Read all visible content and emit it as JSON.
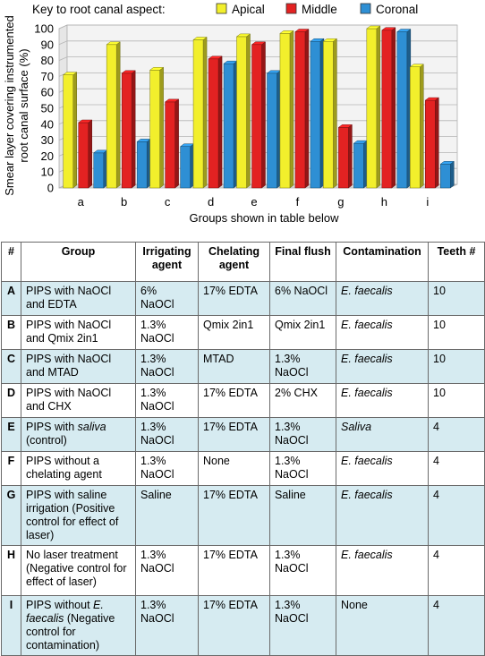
{
  "chart_data": {
    "type": "bar",
    "legend_title": "Key to root canal aspect:",
    "legend_position": "top",
    "categories": [
      "a",
      "b",
      "c",
      "d",
      "e",
      "f",
      "g",
      "h",
      "i"
    ],
    "series": [
      {
        "name": "Apical",
        "color": "#f2ef2c",
        "values": [
          71,
          90,
          74,
          93,
          95,
          97,
          92,
          100,
          76
        ]
      },
      {
        "name": "Middle",
        "color": "#e32222",
        "values": [
          41,
          72,
          54,
          81,
          90,
          98,
          38,
          99,
          55
        ]
      },
      {
        "name": "Coronal",
        "color": "#2e8fd4",
        "values": [
          22,
          29,
          26,
          78,
          72,
          92,
          28,
          98,
          15
        ]
      }
    ],
    "ylabel": "Smear layer covering instrumented root canal surface (%)",
    "ylabel_lines": [
      "Smear layer covering instrumented",
      "root canal surface (%)"
    ],
    "xlabel": "Groups shown in table below",
    "ylim": [
      0,
      100
    ],
    "yticks": [
      0,
      10,
      20,
      30,
      40,
      50,
      60,
      70,
      80,
      90,
      100
    ],
    "grid": true
  },
  "table": {
    "headers": [
      "#",
      "Group",
      "Irrigating agent",
      "Chelating agent",
      "Final flush",
      "Contamination",
      "Teeth #"
    ],
    "rows": [
      {
        "id": "A",
        "group": "PIPS with NaOCl and EDTA",
        "group_italic": "",
        "group_post": "",
        "irrigant": "6% NaOCl",
        "chelator": "17% EDTA",
        "flush": "6% NaOCl",
        "contamination": "E. faecalis",
        "teeth": "10"
      },
      {
        "id": "B",
        "group": "PIPS with NaOCl and Qmix 2in1",
        "group_italic": "",
        "group_post": "",
        "irrigant": "1.3% NaOCl",
        "chelator": "Qmix 2in1",
        "flush": "Qmix 2in1",
        "contamination": "E. faecalis",
        "teeth": "10"
      },
      {
        "id": "C",
        "group": "PIPS with NaOCl and MTAD",
        "group_italic": "",
        "group_post": "",
        "irrigant": "1.3% NaOCl",
        "chelator": "MTAD",
        "flush": "1.3% NaOCl",
        "contamination": "E. faecalis",
        "teeth": "10"
      },
      {
        "id": "D",
        "group": "PIPS with NaOCl and CHX",
        "group_italic": "",
        "group_post": "",
        "irrigant": "1.3% NaOCl",
        "chelator": "17% EDTA",
        "flush": "2% CHX",
        "contamination": "E. faecalis",
        "teeth": "10"
      },
      {
        "id": "E",
        "group": "PIPS with ",
        "group_italic": "saliva",
        "group_post": " (control)",
        "irrigant": "1.3% NaOCl",
        "chelator": "17% EDTA",
        "flush": "1.3% NaOCl",
        "contamination": "Saliva",
        "teeth": "4"
      },
      {
        "id": "F",
        "group": "PIPS without a chelating agent",
        "group_italic": "",
        "group_post": "",
        "irrigant": "1.3% NaOCl",
        "chelator": "None",
        "flush": "1.3% NaOCl",
        "contamination": "E. faecalis",
        "teeth": "4"
      },
      {
        "id": "G",
        "group": "PIPS with saline irrigation (Positive control for effect of laser)",
        "group_italic": "",
        "group_post": "",
        "irrigant": "Saline",
        "chelator": "17% EDTA",
        "flush": "Saline",
        "contamination": "E. faecalis",
        "teeth": "4"
      },
      {
        "id": "H",
        "group": "No laser treatment (Negative control for effect of laser)",
        "group_italic": "",
        "group_post": "",
        "irrigant": "1.3% NaOCl",
        "chelator": "17% EDTA",
        "flush": "1.3% NaOCl",
        "contamination": "E. faecalis",
        "teeth": "4"
      },
      {
        "id": "I",
        "group": "PIPS without ",
        "group_italic": "E. faecalis",
        "group_post": " (Negative control for contamination)",
        "irrigant": "1.3% NaOCl",
        "chelator": "17% EDTA",
        "flush": "1.3% NaOCl",
        "contamination": "None",
        "teeth": "4"
      }
    ]
  }
}
